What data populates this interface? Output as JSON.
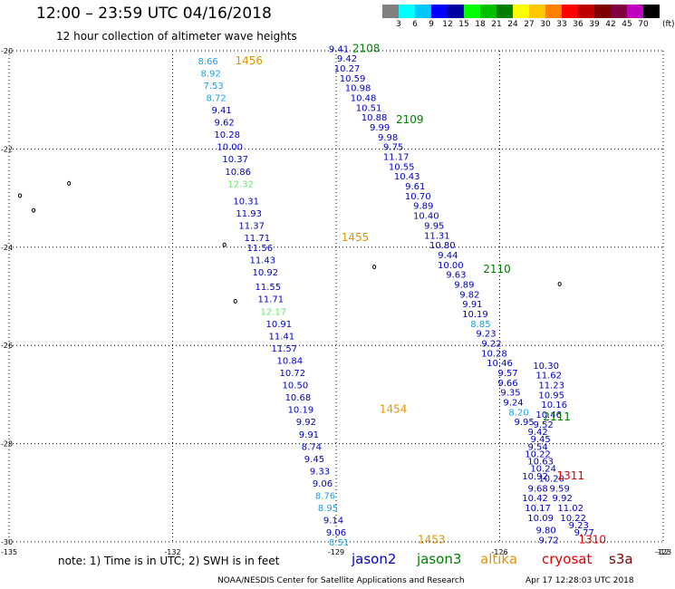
{
  "header": {
    "title": "12:00 – 23:59 UTC 04/16/2018",
    "subtitle": "12 hour collection of altimeter wave heights"
  },
  "colorbar": {
    "colors": [
      "#808080",
      "#00ffff",
      "#00c8ff",
      "#0000ff",
      "#0000a0",
      "#00ff00",
      "#00c000",
      "#008000",
      "#ffff00",
      "#ffc800",
      "#ff8000",
      "#ff0000",
      "#c00000",
      "#800000",
      "#800040",
      "#c000c0",
      "#000000"
    ],
    "labels": [
      "3",
      "6",
      "9",
      "12",
      "15",
      "18",
      "21",
      "24",
      "27",
      "30",
      "33",
      "36",
      "39",
      "42",
      "45",
      "70"
    ],
    "unit": "(ft)"
  },
  "chart_data": {
    "type": "scatter",
    "xlim": [
      -135,
      -123
    ],
    "ylim": [
      -30,
      -20
    ],
    "lon_ticks": [
      "-135",
      "-132",
      "-129",
      "-126",
      "-123",
      "-12"
    ],
    "lat_ticks": [
      "-20",
      "-22",
      "-24",
      "-26",
      "-28",
      "-30"
    ],
    "tracks": [
      {
        "name": "1456",
        "color": "#e69500",
        "lon": -130.6,
        "lat": -20.2
      },
      {
        "name": "1455",
        "color": "#e69500",
        "lon": -128.65,
        "lat": -23.8
      },
      {
        "name": "1454",
        "color": "#e69500",
        "lon": -127.95,
        "lat": -27.3
      },
      {
        "name": "1453",
        "color": "#e69500",
        "lon": -127.25,
        "lat": -29.95
      },
      {
        "name": "2108",
        "color": "#008000",
        "lon": -128.45,
        "lat": -19.95
      },
      {
        "name": "2109",
        "color": "#008000",
        "lon": -127.65,
        "lat": -21.4
      },
      {
        "name": "2110",
        "color": "#008000",
        "lon": -126.05,
        "lat": -24.45
      },
      {
        "name": "2111",
        "color": "#008000",
        "lon": -124.95,
        "lat": -27.45
      },
      {
        "name": "1311",
        "color": "#e00000",
        "lon": -124.7,
        "lat": -28.65
      },
      {
        "name": "1310",
        "color": "#e00000",
        "lon": -124.3,
        "lat": -29.95
      }
    ],
    "islands": [
      [
        -134.8,
        -22.95
      ],
      [
        -134.55,
        -23.25
      ],
      [
        -133.9,
        -22.7
      ],
      [
        -131.05,
        -23.95
      ],
      [
        -130.85,
        -25.1
      ],
      [
        -128.3,
        -24.4
      ],
      [
        -124.9,
        -24.75
      ]
    ],
    "points": [
      {
        "v": "9.41",
        "lon": -128.95,
        "lat": -19.95,
        "c": "#0000c8"
      },
      {
        "v": "9.42",
        "lon": -128.8,
        "lat": -20.15,
        "c": "#0000c8"
      },
      {
        "v": "10.27",
        "lon": -128.8,
        "lat": -20.35,
        "c": "#0000c8"
      },
      {
        "v": "10.59",
        "lon": -128.7,
        "lat": -20.55,
        "c": "#0000c8"
      },
      {
        "v": "10.98",
        "lon": -128.6,
        "lat": -20.75,
        "c": "#0000c8"
      },
      {
        "v": "10.48",
        "lon": -128.5,
        "lat": -20.95,
        "c": "#0000c8"
      },
      {
        "v": "10.51",
        "lon": -128.4,
        "lat": -21.15,
        "c": "#0000c8"
      },
      {
        "v": "10.88",
        "lon": -128.3,
        "lat": -21.35,
        "c": "#0000c8"
      },
      {
        "v": "9.99",
        "lon": -128.2,
        "lat": -21.55,
        "c": "#0000c8"
      },
      {
        "v": "9.98",
        "lon": -128.05,
        "lat": -21.75,
        "c": "#0000c8"
      },
      {
        "v": "9.75",
        "lon": -127.95,
        "lat": -21.95,
        "c": "#0000c8"
      },
      {
        "v": "11.17",
        "lon": -127.9,
        "lat": -22.15,
        "c": "#0000c8"
      },
      {
        "v": "10.55",
        "lon": -127.8,
        "lat": -22.35,
        "c": "#0000c8"
      },
      {
        "v": "10.43",
        "lon": -127.7,
        "lat": -22.55,
        "c": "#0000c8"
      },
      {
        "v": "9.61",
        "lon": -127.55,
        "lat": -22.75,
        "c": "#0000c8"
      },
      {
        "v": "10.70",
        "lon": -127.5,
        "lat": -22.95,
        "c": "#0000c8"
      },
      {
        "v": "9.89",
        "lon": -127.4,
        "lat": -23.15,
        "c": "#0000c8"
      },
      {
        "v": "10.40",
        "lon": -127.35,
        "lat": -23.35,
        "c": "#0000c8"
      },
      {
        "v": "9.95",
        "lon": -127.2,
        "lat": -23.55,
        "c": "#0000c8"
      },
      {
        "v": "11.31",
        "lon": -127.15,
        "lat": -23.75,
        "c": "#0000c8"
      },
      {
        "v": "10.80",
        "lon": -127.05,
        "lat": -23.95,
        "c": "#0000c8"
      },
      {
        "v": "9.44",
        "lon": -126.95,
        "lat": -24.15,
        "c": "#0000c8"
      },
      {
        "v": "10.00",
        "lon": -126.9,
        "lat": -24.35,
        "c": "#0000c8"
      },
      {
        "v": "9.63",
        "lon": -126.8,
        "lat": -24.55,
        "c": "#0000c8"
      },
      {
        "v": "9.89",
        "lon": -126.65,
        "lat": -24.75,
        "c": "#0000c8"
      },
      {
        "v": "9.82",
        "lon": -126.55,
        "lat": -24.95,
        "c": "#0000c8"
      },
      {
        "v": "9.91",
        "lon": -126.5,
        "lat": -25.15,
        "c": "#0000c8"
      },
      {
        "v": "10.19",
        "lon": -126.45,
        "lat": -25.35,
        "c": "#0000c8"
      },
      {
        "v": "8.85",
        "lon": -126.35,
        "lat": -25.55,
        "c": "#1aa0e6"
      },
      {
        "v": "9.23",
        "lon": -126.25,
        "lat": -25.75,
        "c": "#0000c8"
      },
      {
        "v": "9.22",
        "lon": -126.15,
        "lat": -25.95,
        "c": "#0000c8"
      },
      {
        "v": "10.28",
        "lon": -126.1,
        "lat": -26.15,
        "c": "#0000c8"
      },
      {
        "v": "10.46",
        "lon": -126.0,
        "lat": -26.35,
        "c": "#0000c8"
      },
      {
        "v": "9.57",
        "lon": -125.85,
        "lat": -26.55,
        "c": "#0000c8"
      },
      {
        "v": "9.66",
        "lon": -125.85,
        "lat": -26.75,
        "c": "#0000c8"
      },
      {
        "v": "9.35",
        "lon": -125.8,
        "lat": -26.95,
        "c": "#0000c8"
      },
      {
        "v": "9.24",
        "lon": -125.75,
        "lat": -27.15,
        "c": "#0000c8"
      },
      {
        "v": "8.20",
        "lon": -125.65,
        "lat": -27.35,
        "c": "#1aa0e6"
      },
      {
        "v": "9.95",
        "lon": -125.55,
        "lat": -27.55,
        "c": "#0000c8"
      },
      {
        "v": "10.30",
        "lon": -125.15,
        "lat": -26.4,
        "c": "#0000c8"
      },
      {
        "v": "11.62",
        "lon": -125.1,
        "lat": -26.6,
        "c": "#0000c8"
      },
      {
        "v": "11.23",
        "lon": -125.05,
        "lat": -26.8,
        "c": "#0000c8"
      },
      {
        "v": "10.95",
        "lon": -125.05,
        "lat": -27.0,
        "c": "#0000c8"
      },
      {
        "v": "10.16",
        "lon": -125.0,
        "lat": -27.2,
        "c": "#0000c8"
      },
      {
        "v": "10.46",
        "lon": -125.1,
        "lat": -27.4,
        "c": "#0000c8"
      },
      {
        "v": "9.52",
        "lon": -125.2,
        "lat": -27.6,
        "c": "#0000c8"
      },
      {
        "v": "9.42",
        "lon": -125.3,
        "lat": -27.75,
        "c": "#0000c8"
      },
      {
        "v": "9.45",
        "lon": -125.25,
        "lat": -27.9,
        "c": "#0000c8"
      },
      {
        "v": "9.54",
        "lon": -125.3,
        "lat": -28.05,
        "c": "#0000c8"
      },
      {
        "v": "10.22",
        "lon": -125.3,
        "lat": -28.2,
        "c": "#0000c8"
      },
      {
        "v": "10.63",
        "lon": -125.25,
        "lat": -28.35,
        "c": "#0000c8"
      },
      {
        "v": "10.24",
        "lon": -125.2,
        "lat": -28.5,
        "c": "#0000c8"
      },
      {
        "v": "10.92",
        "lon": -125.35,
        "lat": -28.65,
        "c": "#0000c8"
      },
      {
        "v": "10.20",
        "lon": -125.05,
        "lat": -28.7,
        "c": "#0000c8"
      },
      {
        "v": "9.68",
        "lon": -125.3,
        "lat": -28.9,
        "c": "#0000c8"
      },
      {
        "v": "9.59",
        "lon": -124.9,
        "lat": -28.9,
        "c": "#0000c8"
      },
      {
        "v": "10.42",
        "lon": -125.35,
        "lat": -29.1,
        "c": "#0000c8"
      },
      {
        "v": "9.92",
        "lon": -124.85,
        "lat": -29.1,
        "c": "#0000c8"
      },
      {
        "v": "10.17",
        "lon": -125.3,
        "lat": -29.3,
        "c": "#0000c8"
      },
      {
        "v": "11.02",
        "lon": -124.7,
        "lat": -29.3,
        "c": "#0000c8"
      },
      {
        "v": "10.09",
        "lon": -125.25,
        "lat": -29.5,
        "c": "#0000c8"
      },
      {
        "v": "10.22",
        "lon": -124.65,
        "lat": -29.5,
        "c": "#0000c8"
      },
      {
        "v": "9.23",
        "lon": -124.55,
        "lat": -29.65,
        "c": "#0000c8"
      },
      {
        "v": "9.80",
        "lon": -125.15,
        "lat": -29.75,
        "c": "#0000c8"
      },
      {
        "v": "9.77",
        "lon": -124.45,
        "lat": -29.8,
        "c": "#0000c8"
      },
      {
        "v": "9.72",
        "lon": -125.1,
        "lat": -29.95,
        "c": "#0000c8"
      },
      {
        "v": "8.66",
        "lon": -131.35,
        "lat": -20.2,
        "c": "#1aa0e6"
      },
      {
        "v": "8.92",
        "lon": -131.3,
        "lat": -20.45,
        "c": "#1aa0e6"
      },
      {
        "v": "7.53",
        "lon": -131.25,
        "lat": -20.7,
        "c": "#1aa0e6"
      },
      {
        "v": "8.72",
        "lon": -131.2,
        "lat": -20.95,
        "c": "#1aa0e6"
      },
      {
        "v": "9.41",
        "lon": -131.1,
        "lat": -21.2,
        "c": "#0000c8"
      },
      {
        "v": "9.62",
        "lon": -131.05,
        "lat": -21.45,
        "c": "#0000c8"
      },
      {
        "v": "10.28",
        "lon": -131.0,
        "lat": -21.7,
        "c": "#0000c8"
      },
      {
        "v": "10.00",
        "lon": -130.95,
        "lat": -21.95,
        "c": "#0000c8"
      },
      {
        "v": "10.37",
        "lon": -130.85,
        "lat": -22.2,
        "c": "#0000c8"
      },
      {
        "v": "10.86",
        "lon": -130.8,
        "lat": -22.45,
        "c": "#0000c8"
      },
      {
        "v": "12.32",
        "lon": -130.75,
        "lat": -22.7,
        "c": "#6ae66a"
      },
      {
        "v": "10.31",
        "lon": -130.65,
        "lat": -23.05,
        "c": "#0000c8"
      },
      {
        "v": "11.93",
        "lon": -130.6,
        "lat": -23.3,
        "c": "#0000c8"
      },
      {
        "v": "11.37",
        "lon": -130.55,
        "lat": -23.55,
        "c": "#0000c8"
      },
      {
        "v": "11.71",
        "lon": -130.45,
        "lat": -23.8,
        "c": "#0000c8"
      },
      {
        "v": "11.56",
        "lon": -130.4,
        "lat": -24.0,
        "c": "#0000c8"
      },
      {
        "v": "11.43",
        "lon": -130.35,
        "lat": -24.25,
        "c": "#0000c8"
      },
      {
        "v": "10.92",
        "lon": -130.3,
        "lat": -24.5,
        "c": "#0000c8"
      },
      {
        "v": "11.55",
        "lon": -130.25,
        "lat": -24.8,
        "c": "#0000c8"
      },
      {
        "v": "11.71",
        "lon": -130.2,
        "lat": -25.05,
        "c": "#0000c8"
      },
      {
        "v": "12.17",
        "lon": -130.15,
        "lat": -25.3,
        "c": "#6ae66a"
      },
      {
        "v": "10.91",
        "lon": -130.05,
        "lat": -25.55,
        "c": "#0000c8"
      },
      {
        "v": "11.41",
        "lon": -130.0,
        "lat": -25.8,
        "c": "#0000c8"
      },
      {
        "v": "11.57",
        "lon": -129.95,
        "lat": -26.05,
        "c": "#0000c8"
      },
      {
        "v": "10.84",
        "lon": -129.85,
        "lat": -26.3,
        "c": "#0000c8"
      },
      {
        "v": "10.72",
        "lon": -129.8,
        "lat": -26.55,
        "c": "#0000c8"
      },
      {
        "v": "10.50",
        "lon": -129.75,
        "lat": -26.8,
        "c": "#0000c8"
      },
      {
        "v": "10.68",
        "lon": -129.7,
        "lat": -27.05,
        "c": "#0000c8"
      },
      {
        "v": "10.19",
        "lon": -129.65,
        "lat": -27.3,
        "c": "#0000c8"
      },
      {
        "v": "9.92",
        "lon": -129.55,
        "lat": -27.55,
        "c": "#0000c8"
      },
      {
        "v": "9.91",
        "lon": -129.5,
        "lat": -27.8,
        "c": "#0000c8"
      },
      {
        "v": "8.74",
        "lon": -129.45,
        "lat": -28.05,
        "c": "#0000c8"
      },
      {
        "v": "9.45",
        "lon": -129.4,
        "lat": -28.3,
        "c": "#0000c8"
      },
      {
        "v": "9.33",
        "lon": -129.3,
        "lat": -28.55,
        "c": "#0000c8"
      },
      {
        "v": "9.06",
        "lon": -129.25,
        "lat": -28.8,
        "c": "#0000c8"
      },
      {
        "v": "8.76",
        "lon": -129.2,
        "lat": -29.05,
        "c": "#1aa0e6"
      },
      {
        "v": "8.95",
        "lon": -129.15,
        "lat": -29.3,
        "c": "#1aa0e6"
      },
      {
        "v": "9.14",
        "lon": -129.05,
        "lat": -29.55,
        "c": "#0000c8"
      },
      {
        "v": "9.06",
        "lon": -129.0,
        "lat": -29.8,
        "c": "#0000c8"
      },
      {
        "v": "8.51",
        "lon": -128.95,
        "lat": -30.0,
        "c": "#1aa0e6"
      }
    ]
  },
  "footer": {
    "note": "note: 1) Time is in UTC; 2) SWH is in feet",
    "legend": [
      {
        "label": "jason2",
        "color": "#0000c8"
      },
      {
        "label": "jason3",
        "color": "#008000"
      },
      {
        "label": "altika",
        "color": "#e69500"
      },
      {
        "label": "cryosat",
        "color": "#e00000"
      },
      {
        "label": "s3a",
        "color": "#800000"
      }
    ],
    "credit": "NOAA/NESDIS Center for Satellite Applications and Research",
    "timestamp": "Apr 17 12:28:03 UTC 2018"
  }
}
